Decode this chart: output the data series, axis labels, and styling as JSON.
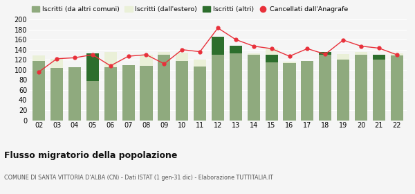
{
  "years": [
    "02",
    "03",
    "04",
    "05",
    "06",
    "07",
    "08",
    "09",
    "10",
    "11",
    "12",
    "13",
    "14",
    "15",
    "16",
    "17",
    "18",
    "19",
    "20",
    "21",
    "22"
  ],
  "iscritti_altri_comuni": [
    117,
    104,
    105,
    78,
    105,
    110,
    108,
    130,
    118,
    107,
    130,
    133,
    130,
    115,
    113,
    117,
    130,
    120,
    130,
    120,
    128
  ],
  "iscritti_estero": [
    11,
    18,
    0,
    7,
    30,
    0,
    22,
    5,
    16,
    14,
    15,
    12,
    3,
    27,
    3,
    1,
    0,
    12,
    5,
    3,
    5
  ],
  "iscritti_altri": [
    0,
    0,
    0,
    55,
    0,
    0,
    0,
    0,
    0,
    0,
    35,
    15,
    0,
    15,
    0,
    0,
    5,
    0,
    0,
    10,
    0
  ],
  "cancellati": [
    96,
    122,
    124,
    130,
    108,
    127,
    130,
    112,
    140,
    136,
    183,
    160,
    147,
    142,
    127,
    142,
    131,
    159,
    147,
    143,
    130
  ],
  "color_altri_comuni": "#8faa7e",
  "color_estero": "#eaf0d8",
  "color_altri": "#2d6e2d",
  "color_cancellati": "#e8303a",
  "ylim": [
    0,
    200
  ],
  "yticks": [
    0,
    20,
    40,
    60,
    80,
    100,
    120,
    140,
    160,
    180,
    200
  ],
  "title": "Flusso migratorio della popolazione",
  "subtitle": "COMUNE DI SANTA VITTORIA D'ALBA (CN) - Dati ISTAT (1 gen-31 dic) - Elaborazione TUTTITALIA.IT",
  "legend_labels": [
    "Iscritti (da altri comuni)",
    "Iscritti (dall'estero)",
    "Iscritti (altri)",
    "Cancellati dall'Anagrafe"
  ],
  "bg_color": "#f5f5f5",
  "grid_color": "#ffffff"
}
